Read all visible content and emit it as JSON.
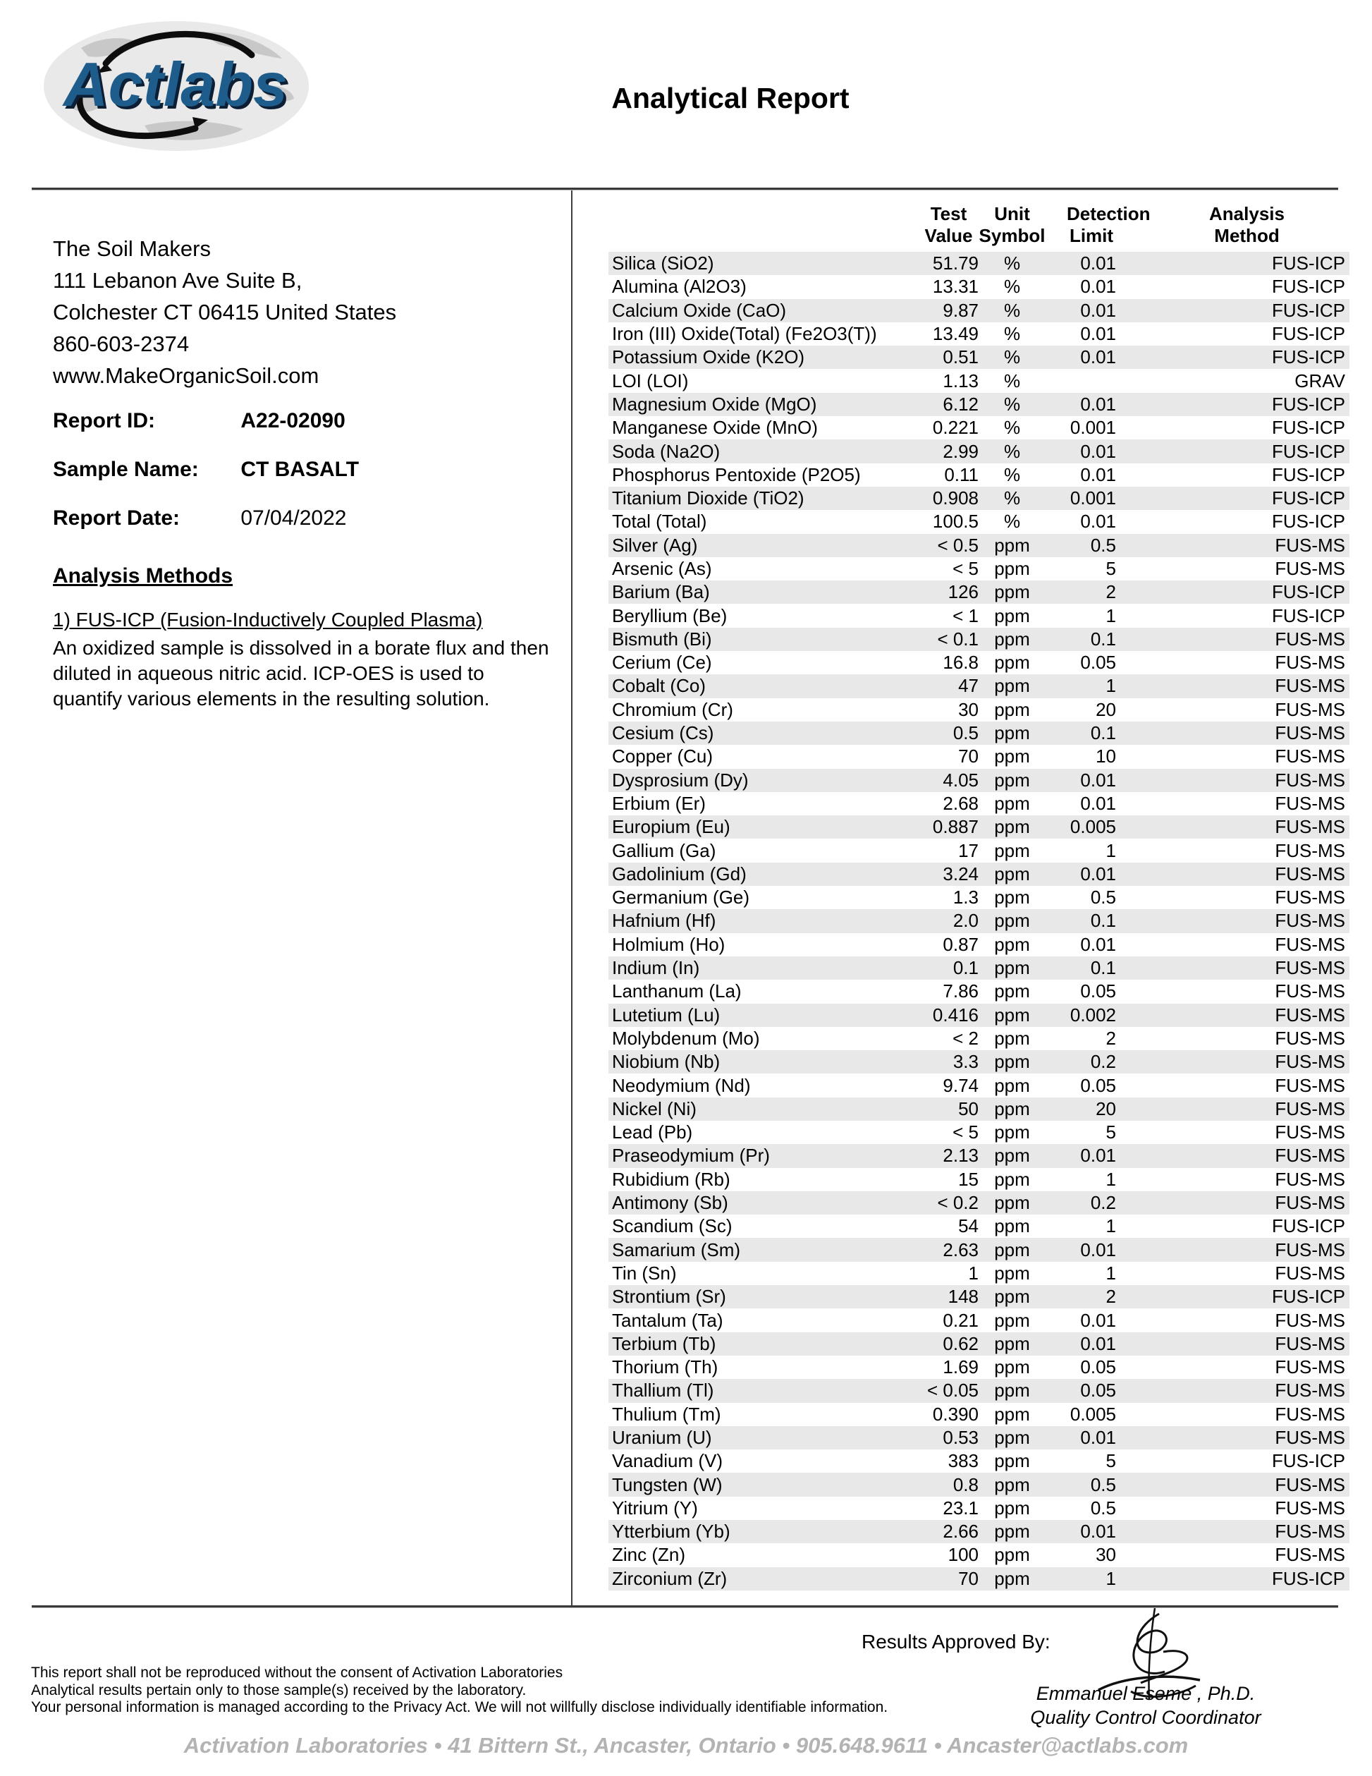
{
  "header": {
    "title": "Analytical Report",
    "logo_text": "Actlabs"
  },
  "client": {
    "name": "The Soil Makers",
    "address_line1": "111 Lebanon Ave Suite B,",
    "address_line2": "Colchester CT 06415 United States",
    "phone": "860-603-2374",
    "website": "www.MakeOrganicSoil.com"
  },
  "report": {
    "id_label": "Report ID:",
    "id_value": "A22-02090",
    "sample_label": "Sample Name:",
    "sample_value": "CT BASALT",
    "date_label": "Report Date:",
    "date_value": "07/04/2022"
  },
  "methods": {
    "heading": "Analysis Methods",
    "item1_title": "1) FUS-ICP (Fusion-Inductively Coupled Plasma)",
    "item1_body": "An oxidized sample is dissolved in a borate flux and then diluted in aqueous nitric acid. ICP-OES is used to quantify various elements in the resulting solution."
  },
  "table": {
    "headers": [
      {
        "line1": "Test",
        "line2": "Value"
      },
      {
        "line1": "Unit",
        "line2": "Symbol"
      },
      {
        "line1": "Detection",
        "line2": "Limit"
      },
      {
        "line1": "Analysis",
        "line2": "Method"
      }
    ],
    "rows": [
      {
        "analyte": "Silica (SiO2)",
        "value": "51.79",
        "unit": "%",
        "limit": "0.01",
        "method": "FUS-ICP"
      },
      {
        "analyte": "Alumina (Al2O3)",
        "value": "13.31",
        "unit": "%",
        "limit": "0.01",
        "method": "FUS-ICP"
      },
      {
        "analyte": "Calcium Oxide (CaO)",
        "value": "9.87",
        "unit": "%",
        "limit": "0.01",
        "method": "FUS-ICP"
      },
      {
        "analyte": "Iron (III) Oxide(Total) (Fe2O3(T))",
        "value": "13.49",
        "unit": "%",
        "limit": "0.01",
        "method": "FUS-ICP"
      },
      {
        "analyte": "Potassium Oxide (K2O)",
        "value": "0.51",
        "unit": "%",
        "limit": "0.01",
        "method": "FUS-ICP"
      },
      {
        "analyte": "LOI (LOI)",
        "value": "1.13",
        "unit": "%",
        "limit": "",
        "method": "GRAV"
      },
      {
        "analyte": "Magnesium Oxide (MgO)",
        "value": "6.12",
        "unit": "%",
        "limit": "0.01",
        "method": "FUS-ICP"
      },
      {
        "analyte": "Manganese Oxide (MnO)",
        "value": "0.221",
        "unit": "%",
        "limit": "0.001",
        "method": "FUS-ICP"
      },
      {
        "analyte": "Soda (Na2O)",
        "value": "2.99",
        "unit": "%",
        "limit": "0.01",
        "method": "FUS-ICP"
      },
      {
        "analyte": "Phosphorus Pentoxide (P2O5)",
        "value": "0.11",
        "unit": "%",
        "limit": "0.01",
        "method": "FUS-ICP"
      },
      {
        "analyte": "Titanium Dioxide (TiO2)",
        "value": "0.908",
        "unit": "%",
        "limit": "0.001",
        "method": "FUS-ICP"
      },
      {
        "analyte": "Total (Total)",
        "value": "100.5",
        "unit": "%",
        "limit": "0.01",
        "method": "FUS-ICP"
      },
      {
        "analyte": "Silver (Ag)",
        "value": "< 0.5",
        "unit": "ppm",
        "limit": "0.5",
        "method": "FUS-MS"
      },
      {
        "analyte": "Arsenic (As)",
        "value": "< 5",
        "unit": "ppm",
        "limit": "5",
        "method": "FUS-MS"
      },
      {
        "analyte": "Barium (Ba)",
        "value": "126",
        "unit": "ppm",
        "limit": "2",
        "method": "FUS-ICP"
      },
      {
        "analyte": "Beryllium (Be)",
        "value": "< 1",
        "unit": "ppm",
        "limit": "1",
        "method": "FUS-ICP"
      },
      {
        "analyte": "Bismuth (Bi)",
        "value": "< 0.1",
        "unit": "ppm",
        "limit": "0.1",
        "method": "FUS-MS"
      },
      {
        "analyte": "Cerium (Ce)",
        "value": "16.8",
        "unit": "ppm",
        "limit": "0.05",
        "method": "FUS-MS"
      },
      {
        "analyte": "Cobalt (Co)",
        "value": "47",
        "unit": "ppm",
        "limit": "1",
        "method": "FUS-MS"
      },
      {
        "analyte": "Chromium (Cr)",
        "value": "30",
        "unit": "ppm",
        "limit": "20",
        "method": "FUS-MS"
      },
      {
        "analyte": "Cesium (Cs)",
        "value": "0.5",
        "unit": "ppm",
        "limit": "0.1",
        "method": "FUS-MS"
      },
      {
        "analyte": "Copper (Cu)",
        "value": "70",
        "unit": "ppm",
        "limit": "10",
        "method": "FUS-MS"
      },
      {
        "analyte": "Dysprosium (Dy)",
        "value": "4.05",
        "unit": "ppm",
        "limit": "0.01",
        "method": "FUS-MS"
      },
      {
        "analyte": "Erbium (Er)",
        "value": "2.68",
        "unit": "ppm",
        "limit": "0.01",
        "method": "FUS-MS"
      },
      {
        "analyte": "Europium (Eu)",
        "value": "0.887",
        "unit": "ppm",
        "limit": "0.005",
        "method": "FUS-MS"
      },
      {
        "analyte": "Gallium (Ga)",
        "value": "17",
        "unit": "ppm",
        "limit": "1",
        "method": "FUS-MS"
      },
      {
        "analyte": "Gadolinium (Gd)",
        "value": "3.24",
        "unit": "ppm",
        "limit": "0.01",
        "method": "FUS-MS"
      },
      {
        "analyte": "Germanium (Ge)",
        "value": "1.3",
        "unit": "ppm",
        "limit": "0.5",
        "method": "FUS-MS"
      },
      {
        "analyte": "Hafnium (Hf)",
        "value": "2.0",
        "unit": "ppm",
        "limit": "0.1",
        "method": "FUS-MS"
      },
      {
        "analyte": "Holmium (Ho)",
        "value": "0.87",
        "unit": "ppm",
        "limit": "0.01",
        "method": "FUS-MS"
      },
      {
        "analyte": "Indium (In)",
        "value": "0.1",
        "unit": "ppm",
        "limit": "0.1",
        "method": "FUS-MS"
      },
      {
        "analyte": "Lanthanum (La)",
        "value": "7.86",
        "unit": "ppm",
        "limit": "0.05",
        "method": "FUS-MS"
      },
      {
        "analyte": "Lutetium (Lu)",
        "value": "0.416",
        "unit": "ppm",
        "limit": "0.002",
        "method": "FUS-MS"
      },
      {
        "analyte": "Molybdenum (Mo)",
        "value": "< 2",
        "unit": "ppm",
        "limit": "2",
        "method": "FUS-MS"
      },
      {
        "analyte": "Niobium (Nb)",
        "value": "3.3",
        "unit": "ppm",
        "limit": "0.2",
        "method": "FUS-MS"
      },
      {
        "analyte": "Neodymium (Nd)",
        "value": "9.74",
        "unit": "ppm",
        "limit": "0.05",
        "method": "FUS-MS"
      },
      {
        "analyte": "Nickel (Ni)",
        "value": "50",
        "unit": "ppm",
        "limit": "20",
        "method": "FUS-MS"
      },
      {
        "analyte": "Lead (Pb)",
        "value": "< 5",
        "unit": "ppm",
        "limit": "5",
        "method": "FUS-MS"
      },
      {
        "analyte": "Praseodymium (Pr)",
        "value": "2.13",
        "unit": "ppm",
        "limit": "0.01",
        "method": "FUS-MS"
      },
      {
        "analyte": "Rubidium (Rb)",
        "value": "15",
        "unit": "ppm",
        "limit": "1",
        "method": "FUS-MS"
      },
      {
        "analyte": "Antimony (Sb)",
        "value": "< 0.2",
        "unit": "ppm",
        "limit": "0.2",
        "method": "FUS-MS"
      },
      {
        "analyte": "Scandium (Sc)",
        "value": "54",
        "unit": "ppm",
        "limit": "1",
        "method": "FUS-ICP"
      },
      {
        "analyte": "Samarium (Sm)",
        "value": "2.63",
        "unit": "ppm",
        "limit": "0.01",
        "method": "FUS-MS"
      },
      {
        "analyte": "Tin (Sn)",
        "value": "1",
        "unit": "ppm",
        "limit": "1",
        "method": "FUS-MS"
      },
      {
        "analyte": "Strontium (Sr)",
        "value": "148",
        "unit": "ppm",
        "limit": "2",
        "method": "FUS-ICP"
      },
      {
        "analyte": "Tantalum (Ta)",
        "value": "0.21",
        "unit": "ppm",
        "limit": "0.01",
        "method": "FUS-MS"
      },
      {
        "analyte": "Terbium (Tb)",
        "value": "0.62",
        "unit": "ppm",
        "limit": "0.01",
        "method": "FUS-MS"
      },
      {
        "analyte": "Thorium (Th)",
        "value": "1.69",
        "unit": "ppm",
        "limit": "0.05",
        "method": "FUS-MS"
      },
      {
        "analyte": "Thallium (Tl)",
        "value": "< 0.05",
        "unit": "ppm",
        "limit": "0.05",
        "method": "FUS-MS"
      },
      {
        "analyte": "Thulium (Tm)",
        "value": "0.390",
        "unit": "ppm",
        "limit": "0.005",
        "method": "FUS-MS"
      },
      {
        "analyte": "Uranium (U)",
        "value": "0.53",
        "unit": "ppm",
        "limit": "0.01",
        "method": "FUS-MS"
      },
      {
        "analyte": "Vanadium (V)",
        "value": "383",
        "unit": "ppm",
        "limit": "5",
        "method": "FUS-ICP"
      },
      {
        "analyte": "Tungsten (W)",
        "value": "0.8",
        "unit": "ppm",
        "limit": "0.5",
        "method": "FUS-MS"
      },
      {
        "analyte": "Yitrium (Y)",
        "value": "23.1",
        "unit": "ppm",
        "limit": "0.5",
        "method": "FUS-MS"
      },
      {
        "analyte": "Ytterbium (Yb)",
        "value": "2.66",
        "unit": "ppm",
        "limit": "0.01",
        "method": "FUS-MS"
      },
      {
        "analyte": "Zinc (Zn)",
        "value": "100",
        "unit": "ppm",
        "limit": "30",
        "method": "FUS-MS"
      },
      {
        "analyte": "Zirconium (Zr)",
        "value": "70",
        "unit": "ppm",
        "limit": "1",
        "method": "FUS-ICP"
      }
    ]
  },
  "approval": {
    "label": "Results Approved By:",
    "name": "Emmanuel Eseme , Ph.D.",
    "title": "Quality Control Coordinator"
  },
  "disclaimer": {
    "line1": "This report shall not be reproduced without the consent of Activation Laboratories",
    "line2": "Analytical results pertain only to those sample(s) received by the laboratory.",
    "line3": "Your personal information is managed according to the Privacy Act. We will not willfully disclose individually identifiable information."
  },
  "footer": {
    "text": "Activation Laboratories • 41 Bittern St., Ancaster, Ontario • 905.648.9611 • Ancaster@actlabs.com"
  },
  "colors": {
    "logo_blue": "#1e5c8c",
    "row_shade": "#e8e8e8",
    "footer_gray": "#b3b3b3"
  }
}
